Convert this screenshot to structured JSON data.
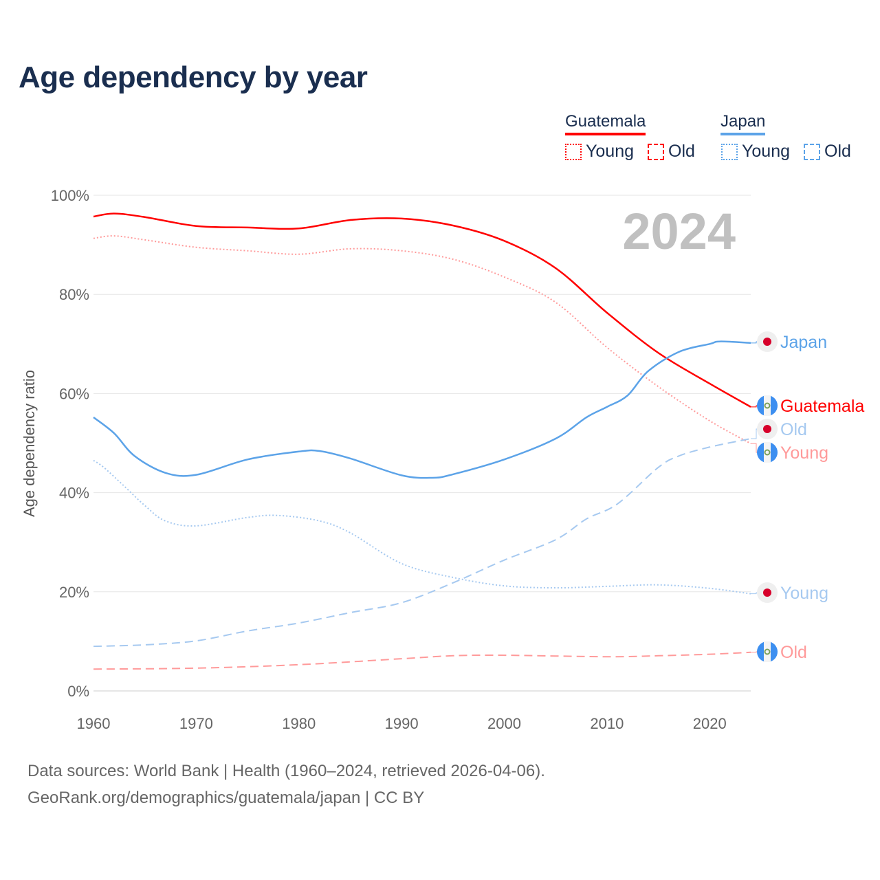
{
  "title": "Age dependency by year",
  "legend": {
    "countries": [
      {
        "name": "Guatemala",
        "color": "#ff0000",
        "light": "#ff9a9a",
        "young": "Young",
        "old": "Old"
      },
      {
        "name": "Japan",
        "color": "#5ca3e8",
        "light": "#a6c9f0",
        "young": "Young",
        "old": "Old"
      }
    ]
  },
  "year_watermark": "2024",
  "footer": {
    "line1": "Data sources: World Bank | Health (1960–2024, retrieved 2026-04-06).",
    "line2": "GeoRank.org/demographics/guatemala/japan | CC BY"
  },
  "chart_data": {
    "type": "line",
    "title": "Age dependency by year",
    "xlabel": "",
    "ylabel": "Age dependency ratio",
    "xlim": [
      1960,
      2024
    ],
    "ylim": [
      0,
      100
    ],
    "x_ticks": [
      "1960",
      "1970",
      "1980",
      "1990",
      "2000",
      "2010",
      "2020"
    ],
    "y_ticks": [
      "0%",
      "20%",
      "40%",
      "60%",
      "80%",
      "100%"
    ],
    "grid": true,
    "legend_position": "top-right",
    "series": [
      {
        "name": "Guatemala",
        "country": "Guatemala",
        "kind": "total",
        "style": "solid",
        "color": "#ff0000",
        "end_label": "Guatemala",
        "points": [
          [
            1960,
            95.7
          ],
          [
            1962,
            96.3
          ],
          [
            1965,
            95.6
          ],
          [
            1970,
            93.8
          ],
          [
            1975,
            93.5
          ],
          [
            1980,
            93.3
          ],
          [
            1985,
            95.0
          ],
          [
            1990,
            95.3
          ],
          [
            1995,
            93.9
          ],
          [
            2000,
            90.8
          ],
          [
            2005,
            85.3
          ],
          [
            2010,
            76.3
          ],
          [
            2015,
            68.2
          ],
          [
            2020,
            62.0
          ],
          [
            2024,
            57.3
          ]
        ]
      },
      {
        "name": "Guatemala Young",
        "country": "Guatemala",
        "kind": "young",
        "style": "dotted",
        "color": "#ff9a9a",
        "end_label": "Young",
        "points": [
          [
            1960,
            91.3
          ],
          [
            1962,
            91.8
          ],
          [
            1965,
            91.0
          ],
          [
            1970,
            89.5
          ],
          [
            1975,
            88.8
          ],
          [
            1980,
            88.1
          ],
          [
            1985,
            89.2
          ],
          [
            1990,
            88.8
          ],
          [
            1995,
            87.1
          ],
          [
            2000,
            83.5
          ],
          [
            2005,
            78.4
          ],
          [
            2010,
            69.3
          ],
          [
            2015,
            61.4
          ],
          [
            2020,
            54.5
          ],
          [
            2024,
            49.9
          ]
        ]
      },
      {
        "name": "Guatemala Old",
        "country": "Guatemala",
        "kind": "old",
        "style": "dashed",
        "color": "#ff9a9a",
        "end_label": "Old",
        "points": [
          [
            1960,
            4.4
          ],
          [
            1970,
            4.6
          ],
          [
            1980,
            5.3
          ],
          [
            1990,
            6.5
          ],
          [
            1995,
            7.1
          ],
          [
            2000,
            7.2
          ],
          [
            2010,
            6.9
          ],
          [
            2015,
            7.1
          ],
          [
            2020,
            7.4
          ],
          [
            2024,
            7.8
          ]
        ]
      },
      {
        "name": "Japan",
        "country": "Japan",
        "kind": "total",
        "style": "solid",
        "color": "#5ca3e8",
        "end_label": "Japan",
        "points": [
          [
            1960,
            55.2
          ],
          [
            1962,
            52.0
          ],
          [
            1964,
            47.4
          ],
          [
            1967,
            44.0
          ],
          [
            1970,
            43.6
          ],
          [
            1975,
            46.7
          ],
          [
            1980,
            48.3
          ],
          [
            1982,
            48.4
          ],
          [
            1985,
            46.9
          ],
          [
            1990,
            43.5
          ],
          [
            1993,
            43.0
          ],
          [
            1995,
            43.7
          ],
          [
            2000,
            46.7
          ],
          [
            2005,
            50.9
          ],
          [
            2008,
            55.2
          ],
          [
            2010,
            57.3
          ],
          [
            2012,
            59.6
          ],
          [
            2014,
            64.5
          ],
          [
            2017,
            68.4
          ],
          [
            2020,
            70.0
          ],
          [
            2021,
            70.5
          ],
          [
            2024,
            70.2
          ]
        ]
      },
      {
        "name": "Japan Young",
        "country": "Japan",
        "kind": "young",
        "style": "dotted",
        "color": "#a6c9f0",
        "end_label": "Young",
        "points": [
          [
            1960,
            46.5
          ],
          [
            1961,
            45.1
          ],
          [
            1963,
            41.3
          ],
          [
            1965,
            37.4
          ],
          [
            1967,
            34.3
          ],
          [
            1970,
            33.3
          ],
          [
            1975,
            35.0
          ],
          [
            1978,
            35.4
          ],
          [
            1982,
            34.3
          ],
          [
            1985,
            31.9
          ],
          [
            1990,
            25.7
          ],
          [
            1995,
            22.9
          ],
          [
            2000,
            21.2
          ],
          [
            2005,
            20.8
          ],
          [
            2010,
            21.1
          ],
          [
            2015,
            21.4
          ],
          [
            2020,
            20.7
          ],
          [
            2024,
            19.6
          ]
        ]
      },
      {
        "name": "Japan Old",
        "country": "Japan",
        "kind": "old",
        "style": "dashed",
        "color": "#a6c9f0",
        "end_label": "Old",
        "points": [
          [
            1960,
            9.0
          ],
          [
            1965,
            9.3
          ],
          [
            1970,
            10.1
          ],
          [
            1975,
            12.1
          ],
          [
            1980,
            13.7
          ],
          [
            1985,
            15.8
          ],
          [
            1990,
            17.8
          ],
          [
            1995,
            21.8
          ],
          [
            2000,
            26.4
          ],
          [
            2005,
            30.5
          ],
          [
            2008,
            34.7
          ],
          [
            2011,
            37.7
          ],
          [
            2015,
            45.1
          ],
          [
            2017,
            47.4
          ],
          [
            2020,
            49.2
          ],
          [
            2024,
            50.9
          ]
        ]
      }
    ]
  }
}
